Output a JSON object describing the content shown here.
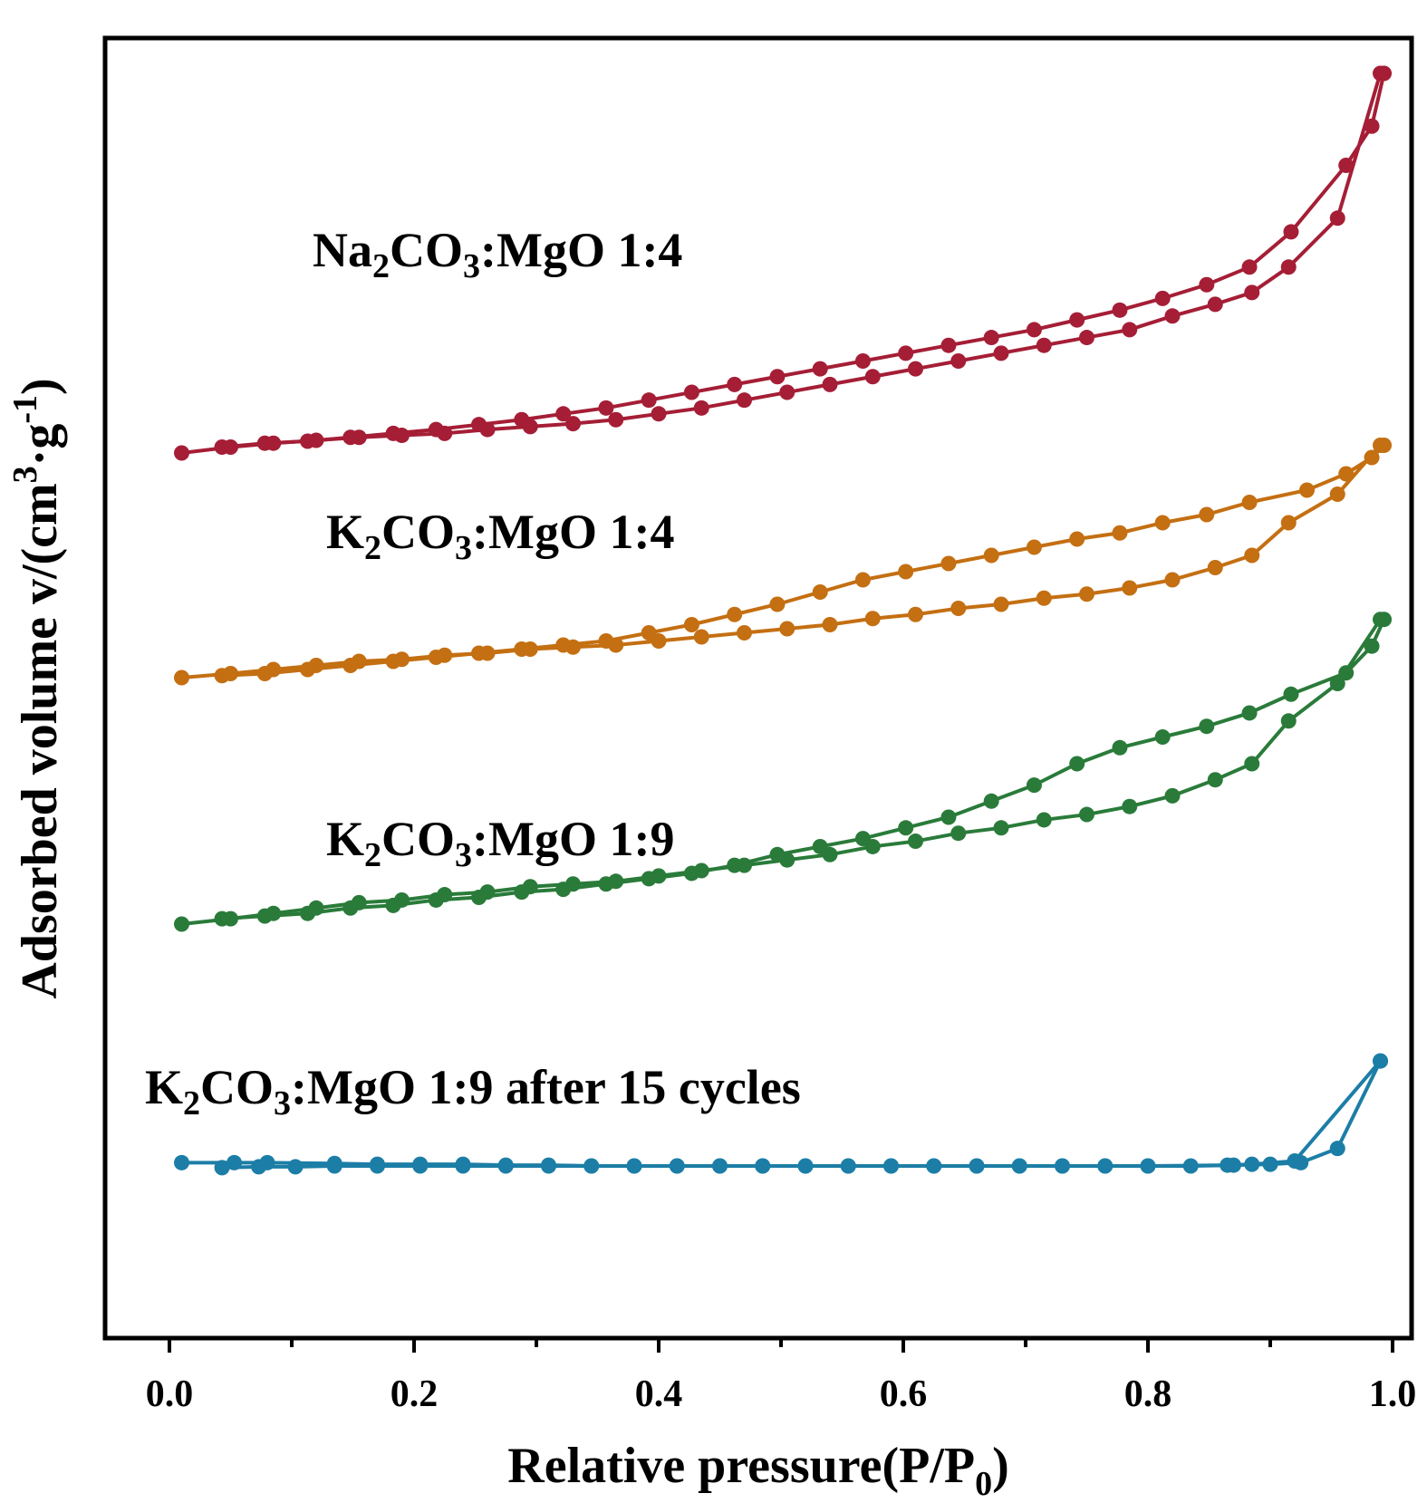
{
  "chart_data": {
    "type": "line",
    "xlabel": {
      "main": "Relative pressure(P/P",
      "sub": "0",
      "end": ")"
    },
    "ylabel": {
      "main": "Adsorbed volume v/(cm",
      "sup1": "3",
      "mid": "·g",
      "sup2": "-1",
      "end": ")"
    },
    "xlim": [
      -0.05,
      1.01
    ],
    "x_ticks": [
      "0.0",
      "0.2",
      "0.4",
      "0.6",
      "0.8",
      "1.0"
    ],
    "y_ticks_labeled": false,
    "grid": false,
    "series": [
      {
        "name": "Na2CO3:MgO 1:4",
        "label_parts": {
          "a": "Na",
          "s1": "2",
          "b": "CO",
          "s2": "3",
          "c": ":MgO 1:4"
        },
        "color": "#a51e36",
        "adsorption": {
          "x": [
            0.01,
            0.05,
            0.085,
            0.12,
            0.155,
            0.19,
            0.225,
            0.26,
            0.295,
            0.33,
            0.365,
            0.4,
            0.435,
            0.47,
            0.505,
            0.54,
            0.575,
            0.61,
            0.645,
            0.68,
            0.715,
            0.75,
            0.785,
            0.82,
            0.855,
            0.885,
            0.915,
            0.955,
            0.99
          ],
          "y": [
            1.0,
            1.3,
            1.5,
            1.65,
            1.8,
            1.9,
            2.0,
            2.2,
            2.35,
            2.5,
            2.7,
            3.0,
            3.3,
            3.7,
            4.1,
            4.5,
            4.9,
            5.3,
            5.7,
            6.1,
            6.5,
            6.9,
            7.3,
            8.0,
            8.6,
            9.2,
            10.5,
            13.0,
            20.4
          ]
        },
        "desorption": {
          "x": [
            0.993,
            0.983,
            0.962,
            0.917,
            0.883,
            0.848,
            0.812,
            0.777,
            0.742,
            0.707,
            0.672,
            0.637,
            0.602,
            0.567,
            0.532,
            0.497,
            0.462,
            0.427,
            0.392,
            0.357,
            0.322,
            0.288,
            0.253,
            0.218,
            0.183,
            0.148,
            0.113,
            0.078,
            0.043
          ],
          "y": [
            20.4,
            17.7,
            15.7,
            12.3,
            10.5,
            9.6,
            8.9,
            8.3,
            7.8,
            7.3,
            6.9,
            6.5,
            6.1,
            5.7,
            5.3,
            4.9,
            4.5,
            4.1,
            3.7,
            3.3,
            3.0,
            2.7,
            2.45,
            2.2,
            2.0,
            1.8,
            1.6,
            1.5,
            1.3
          ]
        }
      },
      {
        "name": "K2CO3:MgO 1:4",
        "label_parts": {
          "a": "K",
          "s1": "2",
          "b": "CO",
          "s2": "3",
          "c": ":MgO 1:4"
        },
        "color": "#c46f12",
        "adsorption": {
          "x": [
            0.01,
            0.05,
            0.085,
            0.12,
            0.155,
            0.19,
            0.225,
            0.26,
            0.295,
            0.33,
            0.365,
            0.4,
            0.435,
            0.47,
            0.505,
            0.54,
            0.575,
            0.61,
            0.645,
            0.68,
            0.715,
            0.75,
            0.785,
            0.82,
            0.855,
            0.885,
            0.915,
            0.955,
            0.99
          ],
          "y": [
            1.0,
            1.1,
            1.2,
            1.3,
            1.4,
            1.45,
            1.55,
            1.6,
            1.7,
            1.75,
            1.8,
            1.9,
            2.0,
            2.1,
            2.2,
            2.3,
            2.45,
            2.55,
            2.7,
            2.8,
            2.95,
            3.05,
            3.2,
            3.4,
            3.7,
            4.0,
            4.8,
            5.5,
            6.7
          ]
        },
        "desorption": {
          "x": [
            0.993,
            0.983,
            0.962,
            0.93,
            0.883,
            0.848,
            0.812,
            0.777,
            0.742,
            0.707,
            0.672,
            0.637,
            0.602,
            0.567,
            0.532,
            0.497,
            0.462,
            0.427,
            0.392,
            0.357,
            0.322,
            0.288,
            0.253,
            0.218,
            0.183,
            0.148,
            0.113,
            0.078,
            0.043
          ],
          "y": [
            6.7,
            6.4,
            6.0,
            5.6,
            5.3,
            5.0,
            4.8,
            4.55,
            4.4,
            4.2,
            4.0,
            3.8,
            3.6,
            3.4,
            3.1,
            2.8,
            2.55,
            2.3,
            2.1,
            1.9,
            1.8,
            1.7,
            1.6,
            1.5,
            1.4,
            1.3,
            1.2,
            1.1,
            1.05
          ]
        }
      },
      {
        "name": "K2CO3:MgO 1:9",
        "label_parts": {
          "a": "K",
          "s1": "2",
          "b": "CO",
          "s2": "3",
          "c": ":MgO 1:9"
        },
        "color": "#2a7b3a",
        "adsorption": {
          "x": [
            0.01,
            0.05,
            0.085,
            0.12,
            0.155,
            0.19,
            0.225,
            0.26,
            0.295,
            0.33,
            0.365,
            0.4,
            0.435,
            0.47,
            0.505,
            0.54,
            0.575,
            0.61,
            0.645,
            0.68,
            0.715,
            0.75,
            0.785,
            0.82,
            0.855,
            0.885,
            0.915,
            0.955,
            0.99
          ],
          "y": [
            1.0,
            1.1,
            1.2,
            1.3,
            1.4,
            1.45,
            1.55,
            1.6,
            1.7,
            1.75,
            1.8,
            1.9,
            2.0,
            2.1,
            2.2,
            2.3,
            2.45,
            2.55,
            2.7,
            2.8,
            2.95,
            3.05,
            3.2,
            3.4,
            3.7,
            4.0,
            4.8,
            5.5,
            6.7
          ]
        },
        "desorption": {
          "x": [
            0.993,
            0.983,
            0.962,
            0.917,
            0.883,
            0.848,
            0.812,
            0.777,
            0.742,
            0.707,
            0.672,
            0.637,
            0.602,
            0.567,
            0.532,
            0.497,
            0.462,
            0.427,
            0.392,
            0.357,
            0.322,
            0.288,
            0.253,
            0.218,
            0.183,
            0.148,
            0.113,
            0.078,
            0.043
          ],
          "y": [
            6.7,
            6.2,
            5.7,
            5.3,
            4.95,
            4.7,
            4.5,
            4.3,
            4.0,
            3.6,
            3.3,
            3.0,
            2.8,
            2.6,
            2.45,
            2.3,
            2.1,
            1.95,
            1.85,
            1.75,
            1.65,
            1.6,
            1.5,
            1.45,
            1.35,
            1.3,
            1.2,
            1.15,
            1.1
          ]
        }
      },
      {
        "name": "K2CO3:MgO 1:9 after 15 cycles",
        "label_parts": {
          "a": "K",
          "s1": "2",
          "b": "CO",
          "s2": "3",
          "c": ":MgO 1:9 after 15 cycles"
        },
        "color": "#1c7ea6",
        "adsorption": {
          "x": [
            0.043,
            0.073,
            0.103,
            0.135,
            0.17,
            0.205,
            0.24,
            0.275,
            0.31,
            0.345,
            0.38,
            0.415,
            0.45,
            0.485,
            0.52,
            0.555,
            0.59,
            0.625,
            0.66,
            0.695,
            0.73,
            0.765,
            0.8,
            0.835,
            0.87,
            0.9,
            0.925,
            0.955,
            0.99
          ],
          "y": [
            0.82,
            0.83,
            0.83,
            0.84,
            0.84,
            0.84,
            0.84,
            0.84,
            0.84,
            0.84,
            0.84,
            0.84,
            0.84,
            0.84,
            0.84,
            0.84,
            0.84,
            0.84,
            0.84,
            0.84,
            0.84,
            0.84,
            0.84,
            0.84,
            0.85,
            0.86,
            0.88,
            1.05,
            2.1
          ]
        },
        "desorption": {
          "x": [
            0.99,
            0.92,
            0.885,
            0.865,
            0.8,
            0.765,
            0.73,
            0.695,
            0.66,
            0.625,
            0.59,
            0.555,
            0.52,
            0.485,
            0.45,
            0.415,
            0.38,
            0.345,
            0.31,
            0.275,
            0.24,
            0.205,
            0.17,
            0.135,
            0.08,
            0.053,
            0.01
          ],
          "y": [
            2.1,
            0.9,
            0.86,
            0.85,
            0.84,
            0.84,
            0.84,
            0.84,
            0.84,
            0.84,
            0.84,
            0.84,
            0.84,
            0.84,
            0.84,
            0.84,
            0.84,
            0.84,
            0.85,
            0.85,
            0.86,
            0.86,
            0.86,
            0.87,
            0.88,
            0.88,
            0.88
          ]
        }
      }
    ]
  }
}
